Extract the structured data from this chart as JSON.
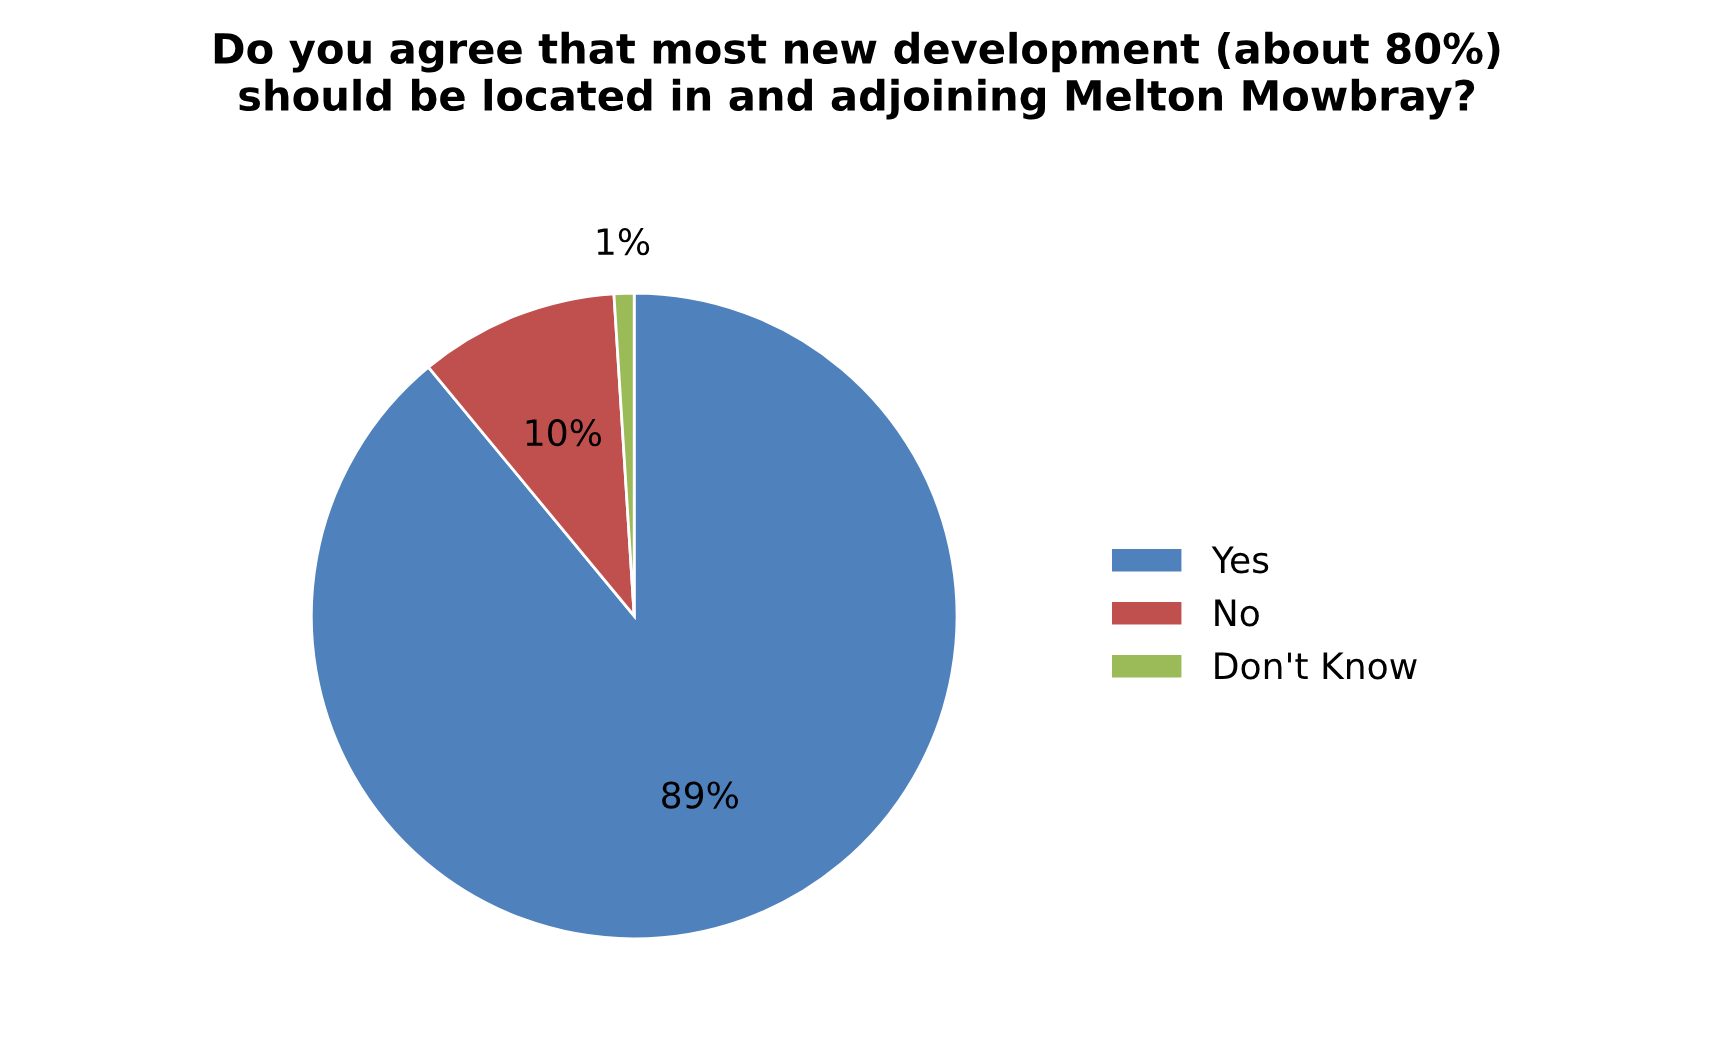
{
  "chart_data": {
    "type": "pie",
    "title": "Do you agree that most new development (about 80%)\nshould be located in and adjoining Melton Mowbray?",
    "categories": [
      "Yes",
      "No",
      "Don't Know"
    ],
    "values": [
      89,
      10,
      1
    ],
    "colors": [
      "#4f81bd",
      "#c0504d",
      "#9bbb59"
    ],
    "value_labels": [
      "89%",
      "10%",
      "1%"
    ],
    "legend": "right"
  }
}
